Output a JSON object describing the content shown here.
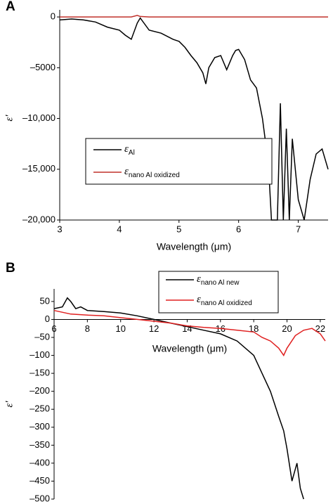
{
  "chart_data": [
    {
      "type": "line",
      "panel_label": "A",
      "x_label": "Wavelength (μm)",
      "y_label": "ε′",
      "legend_symbol": "ε",
      "x": [
        3,
        3.2,
        3.4,
        3.6,
        3.8,
        4.0,
        4.1,
        4.2,
        4.3,
        4.35,
        4.5,
        4.7,
        4.9,
        5.0,
        5.1,
        5.2,
        5.3,
        5.4,
        5.45,
        5.5,
        5.6,
        5.7,
        5.8,
        5.9,
        5.95,
        6.0,
        6.1,
        6.2,
        6.3,
        6.4,
        6.5,
        6.55,
        6.65,
        6.7,
        6.75,
        6.8,
        6.85,
        6.9,
        7.0,
        7.1,
        7.2,
        7.3,
        7.4,
        7.5
      ],
      "series": [
        {
          "name": "Al",
          "color": "#000000",
          "values": [
            -300,
            -200,
            -300,
            -500,
            -1000,
            -1300,
            -1800,
            -2200,
            -600,
            -100,
            -1300,
            -1600,
            -2200,
            -2400,
            -3000,
            -3800,
            -4500,
            -5500,
            -6600,
            -5000,
            -4000,
            -3800,
            -5200,
            -3800,
            -3300,
            -3200,
            -4200,
            -6200,
            -7000,
            -10000,
            -14500,
            -20000,
            -20000,
            -8500,
            -20000,
            -11000,
            -20000,
            -12000,
            -18000,
            -20000,
            -16000,
            -13500,
            -13000,
            -15000
          ]
        },
        {
          "name": "nano Al oxidized",
          "color": "#c0302a",
          "values": [
            0,
            0,
            0,
            0,
            0,
            0,
            0,
            0,
            150,
            50,
            0,
            0,
            0,
            0,
            0,
            0,
            0,
            0,
            0,
            0,
            0,
            0,
            0,
            0,
            0,
            0,
            0,
            0,
            0,
            0,
            0,
            0,
            0,
            0,
            0,
            0,
            0,
            0,
            0,
            0,
            0,
            0,
            0,
            0
          ]
        }
      ],
      "xlim": [
        3,
        7.5
      ],
      "xticks": [
        3,
        4,
        5,
        6,
        7
      ],
      "ylim": [
        -20000,
        700
      ],
      "yticks": [
        0,
        {
          "value": -5000,
          "label": "–5000"
        },
        {
          "value": -10000,
          "label": "–10,000"
        },
        {
          "value": -15000,
          "label": "–15,000"
        },
        {
          "value": -20000,
          "label": "–20,000"
        }
      ]
    },
    {
      "type": "line",
      "panel_label": "B",
      "x_label": "Wavelength (μm)",
      "y_label": "ε′",
      "legend_symbol": "ε",
      "series": [
        {
          "name": "nano Al new",
          "color": "#000000",
          "x": [
            6,
            6.5,
            6.8,
            7,
            7.3,
            7.6,
            8,
            9,
            10,
            11,
            12,
            13,
            14,
            15,
            16,
            17,
            18,
            18.5,
            19,
            19.5,
            19.8,
            20,
            20.3,
            20.6,
            20.8,
            21
          ],
          "values": [
            30,
            35,
            60,
            50,
            30,
            35,
            25,
            22,
            18,
            10,
            0,
            -10,
            -20,
            -30,
            -40,
            -60,
            -100,
            -150,
            -200,
            -270,
            -310,
            -360,
            -450,
            -400,
            -470,
            -500
          ]
        },
        {
          "name": "nano Al oxidized",
          "color": "#e02020",
          "x": [
            6,
            7,
            8,
            9,
            10,
            11,
            12,
            13,
            14,
            15,
            16,
            17,
            18,
            18.5,
            19,
            19.5,
            19.8,
            20,
            20.5,
            21,
            21.5,
            22,
            22.3
          ],
          "values": [
            25,
            15,
            12,
            10,
            5,
            0,
            -5,
            -10,
            -18,
            -22,
            -25,
            -30,
            -35,
            -50,
            -60,
            -80,
            -100,
            -80,
            -45,
            -30,
            -25,
            -40,
            -60
          ]
        }
      ],
      "xlim": [
        6,
        22.3
      ],
      "xticks": [
        6,
        8,
        10,
        12,
        14,
        16,
        18,
        20,
        22
      ],
      "ylim": [
        -500,
        85
      ],
      "yticks": [
        50,
        0,
        {
          "value": -50,
          "label": "–50"
        },
        {
          "value": -100,
          "label": "–100"
        },
        {
          "value": -150,
          "label": "–150"
        },
        {
          "value": -200,
          "label": "–200"
        },
        {
          "value": -250,
          "label": "–250"
        },
        {
          "value": -300,
          "label": "–300"
        },
        {
          "value": -350,
          "label": "–350"
        },
        {
          "value": -400,
          "label": "–400"
        },
        {
          "value": -450,
          "label": "–450"
        },
        {
          "value": -500,
          "label": "–500"
        }
      ]
    }
  ]
}
